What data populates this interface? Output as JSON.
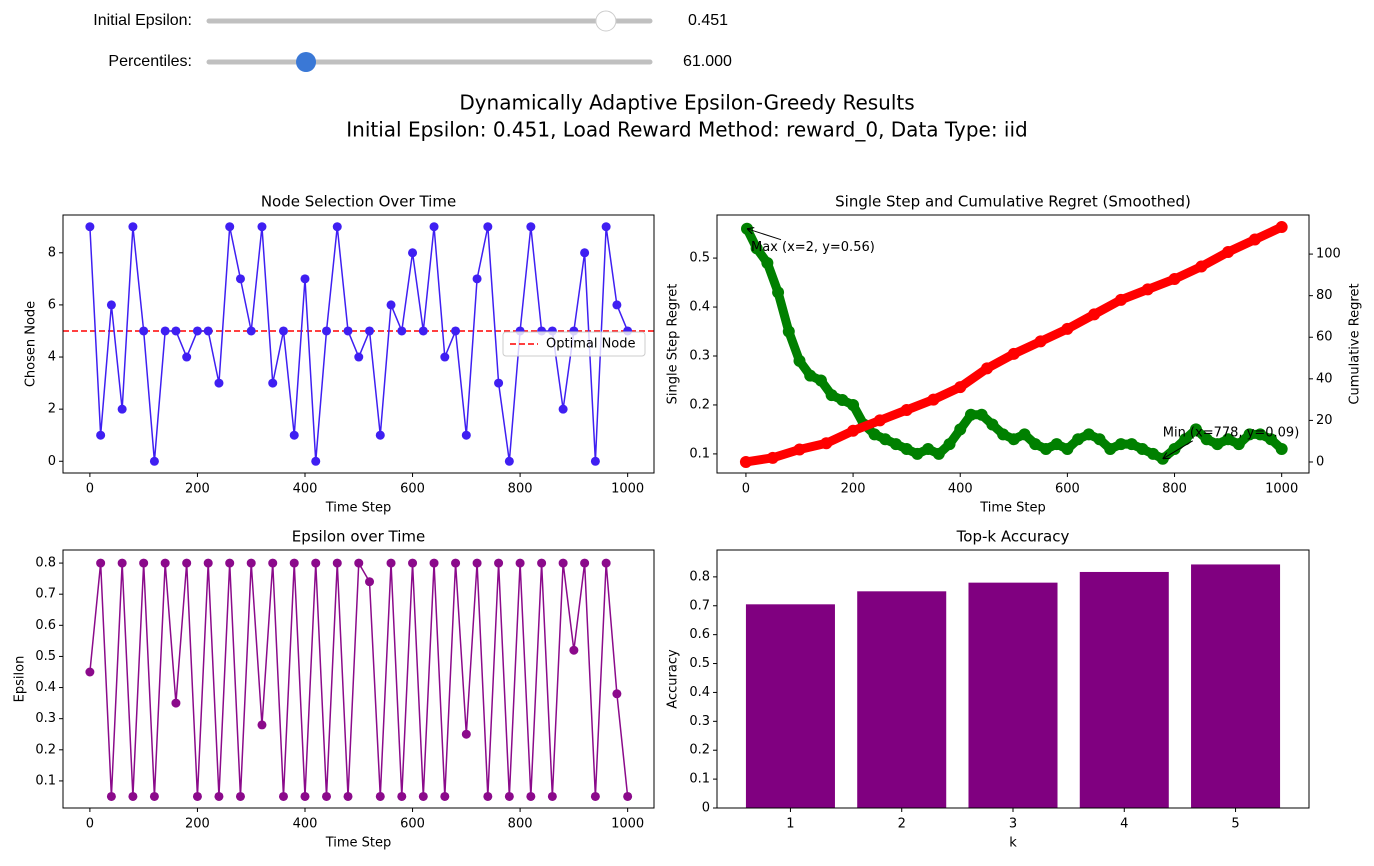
{
  "controls": [
    {
      "label": "Initial Epsilon:",
      "value": 0.451,
      "min": 0.01,
      "max": 0.5
    },
    {
      "label": "Percentiles:",
      "value": 61,
      "value_label": "61.000",
      "min": 50,
      "max": 100
    }
  ],
  "figure_title": [
    "Dynamically Adaptive Epsilon-Greedy Results",
    "Initial Epsilon: 0.451, Load Reward Method: reward_0, Data Type: iid"
  ],
  "chart_data": [
    {
      "type": "line",
      "title": "Node Selection Over Time",
      "x_label": "Time Step",
      "y_label": "Chosen Node",
      "color": "#3f1ff2",
      "x": [
        0,
        20,
        40,
        60,
        80,
        100,
        120,
        140,
        160,
        180,
        200,
        220,
        240,
        260,
        280,
        300,
        320,
        340,
        360,
        380,
        400,
        420,
        440,
        460,
        480,
        500,
        520,
        540,
        560,
        580,
        600,
        620,
        640,
        660,
        680,
        700,
        720,
        740,
        760,
        780,
        800,
        820,
        840,
        860,
        880,
        900,
        920,
        940,
        960,
        980,
        1000
      ],
      "values": [
        9,
        1,
        6,
        2,
        9,
        5,
        0,
        5,
        5,
        4,
        5,
        5,
        3,
        9,
        7,
        5,
        9,
        3,
        5,
        1,
        7,
        0,
        5,
        9,
        5,
        4,
        5,
        1,
        6,
        5,
        8,
        5,
        9,
        4,
        5,
        1,
        7,
        9,
        3,
        0,
        5,
        9,
        5,
        5,
        2,
        5,
        8,
        0,
        9,
        6,
        5
      ],
      "reference_line": {
        "value": 5,
        "label": "Optimal Node",
        "color": "red"
      },
      "legend": "center right",
      "xlim": [
        -50,
        1049
      ],
      "ylim": [
        -0.45,
        9.45
      ],
      "xticks": [
        0,
        200,
        400,
        600,
        800,
        1000
      ],
      "yticks": [
        0,
        2,
        4,
        6,
        8
      ]
    },
    {
      "type": "dual_line",
      "title": "Single Step and Cumulative Regret (Smoothed)",
      "x_label": "Time Step",
      "series": [
        {
          "name": "Single Step Regret",
          "color": "green",
          "x": [
            2,
            20,
            40,
            60,
            80,
            100,
            120,
            140,
            160,
            180,
            200,
            220,
            240,
            260,
            280,
            300,
            320,
            340,
            360,
            380,
            400,
            420,
            440,
            460,
            480,
            500,
            520,
            540,
            560,
            580,
            600,
            620,
            640,
            660,
            680,
            700,
            720,
            740,
            760,
            778,
            800,
            820,
            840,
            860,
            880,
            900,
            920,
            940,
            960,
            980,
            1000
          ],
          "values": [
            0.56,
            0.52,
            0.49,
            0.43,
            0.35,
            0.29,
            0.26,
            0.25,
            0.22,
            0.21,
            0.2,
            0.16,
            0.14,
            0.13,
            0.12,
            0.11,
            0.1,
            0.11,
            0.1,
            0.12,
            0.15,
            0.18,
            0.18,
            0.16,
            0.14,
            0.13,
            0.14,
            0.12,
            0.11,
            0.12,
            0.11,
            0.13,
            0.14,
            0.13,
            0.11,
            0.12,
            0.12,
            0.11,
            0.1,
            0.09,
            0.11,
            0.13,
            0.15,
            0.13,
            0.12,
            0.13,
            0.12,
            0.14,
            0.14,
            0.13,
            0.11
          ]
        },
        {
          "name": "Cumulative Regret",
          "color": "red",
          "axis": "y2",
          "x": [
            0,
            50,
            100,
            150,
            200,
            250,
            300,
            350,
            400,
            450,
            500,
            550,
            600,
            650,
            700,
            750,
            800,
            850,
            900,
            950,
            1000
          ],
          "values": [
            0,
            2,
            6,
            9,
            15,
            20,
            25,
            30,
            36,
            45,
            52,
            58,
            64,
            71,
            78,
            83,
            88,
            94,
            101,
            107,
            113
          ]
        }
      ],
      "annotations": [
        {
          "text": "Max (x=2, y=0.56)",
          "x": 2,
          "y": 0.56,
          "color": "red"
        },
        {
          "text": "Min (x=778, y=0.09)",
          "x": 778,
          "y": 0.09,
          "color": "blue"
        }
      ],
      "xlim": [
        -54,
        1051
      ],
      "ylim": [
        0.061,
        0.588
      ],
      "y2lim": [
        -5.3,
        118.8
      ],
      "xticks": [
        0,
        200,
        400,
        600,
        800,
        1000
      ],
      "yticks": [
        0.1,
        0.2,
        0.3,
        0.4,
        0.5
      ],
      "y2ticks": [
        0,
        20,
        40,
        60,
        80,
        100
      ]
    },
    {
      "type": "line",
      "title": "Epsilon over Time",
      "x_label": "Time Step",
      "y_label": "Epsilon",
      "color": "#8b0a8b",
      "x": [
        0,
        20,
        40,
        60,
        80,
        100,
        120,
        140,
        160,
        180,
        200,
        220,
        240,
        260,
        280,
        300,
        320,
        340,
        360,
        380,
        400,
        420,
        440,
        460,
        480,
        500,
        520,
        540,
        560,
        580,
        600,
        620,
        640,
        660,
        680,
        700,
        720,
        740,
        760,
        780,
        800,
        820,
        840,
        860,
        880,
        900,
        920,
        940,
        960,
        980,
        1000
      ],
      "values": [
        0.45,
        0.8,
        0.05,
        0.8,
        0.05,
        0.8,
        0.05,
        0.8,
        0.35,
        0.8,
        0.05,
        0.8,
        0.05,
        0.8,
        0.05,
        0.8,
        0.28,
        0.8,
        0.05,
        0.8,
        0.05,
        0.8,
        0.05,
        0.8,
        0.05,
        0.8,
        0.74,
        0.05,
        0.8,
        0.05,
        0.8,
        0.05,
        0.8,
        0.05,
        0.8,
        0.25,
        0.8,
        0.05,
        0.8,
        0.05,
        0.8,
        0.05,
        0.8,
        0.05,
        0.8,
        0.52,
        0.8,
        0.05,
        0.8,
        0.38,
        0.05
      ],
      "xlim": [
        -50,
        1049
      ],
      "ylim": [
        0.013,
        0.842
      ],
      "xticks": [
        0,
        200,
        400,
        600,
        800,
        1000
      ],
      "yticks": [
        0.1,
        0.2,
        0.3,
        0.4,
        0.5,
        0.6,
        0.7,
        0.8
      ]
    },
    {
      "type": "bar",
      "title": "Top-k Accuracy",
      "x_label": "k",
      "y_label": "Accuracy",
      "color": "#800080",
      "categories": [
        "1",
        "2",
        "3",
        "4",
        "5"
      ],
      "values": [
        0.705,
        0.75,
        0.78,
        0.817,
        0.843
      ],
      "ylim": [
        0,
        0.893
      ],
      "yticks": [
        0,
        0.1,
        0.2,
        0.3,
        0.4,
        0.5,
        0.6,
        0.7,
        0.8
      ]
    }
  ]
}
